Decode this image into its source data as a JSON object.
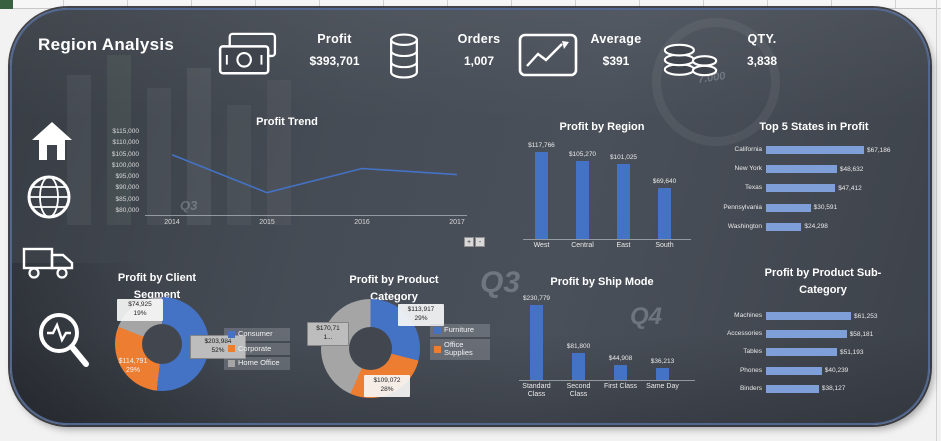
{
  "header": {
    "title": "Region Analysis"
  },
  "kpis": [
    {
      "label": "Profit",
      "value": "$393,701",
      "icon": "cash-icon"
    },
    {
      "label": "Orders",
      "value": "1,007",
      "icon": "database-icon"
    },
    {
      "label": "Average",
      "value": "$391",
      "icon": "line-chart-icon"
    },
    {
      "label": "QTY.",
      "value": "3,838",
      "icon": "coins-icon"
    }
  ],
  "trend_controls": {
    "zoom_in": "+",
    "zoom_out": "-"
  },
  "watermarks": {
    "q3_small": "Q3",
    "q3_big": "Q3",
    "q4": "Q4",
    "number": "7.000"
  },
  "colors": {
    "accent_blue": "#4472c4",
    "accent_light_blue": "#7f9fd8",
    "accent_orange": "#ed7d31",
    "accent_gray": "#a5a5a5",
    "card_bg": "#3f444c"
  },
  "chart_data": [
    {
      "type": "line",
      "title": "Profit Trend",
      "x": [
        "2014",
        "2015",
        "2016",
        "2017"
      ],
      "values": [
        105800,
        89000,
        99700,
        97000
      ],
      "ylim": [
        80000,
        115000
      ],
      "ytick_labels": [
        "$115,000",
        "$110,000",
        "$105,000",
        "$100,000",
        "$95,000",
        "$90,000",
        "$85,000",
        "$80,000"
      ],
      "line_color": "#4472c4",
      "legend": "off"
    },
    {
      "type": "bar",
      "title": "Profit by Region",
      "categories": [
        "West",
        "Central",
        "East",
        "South"
      ],
      "values": [
        117766,
        105270,
        101025,
        69640
      ],
      "value_labels": [
        "$117,766",
        "$105,270",
        "$101,025",
        "$69,640"
      ],
      "bar_color": "#4472c4"
    },
    {
      "type": "bar",
      "orientation": "horizontal",
      "title": "Top 5 States in Profit",
      "categories": [
        "California",
        "New York",
        "Texas",
        "Pennsylvania",
        "Washington"
      ],
      "values": [
        67186,
        48632,
        47412,
        30591,
        24298
      ],
      "value_labels": [
        "$67,186",
        "$48,632",
        "$47,412",
        "$30,591",
        "$24,298"
      ],
      "bar_color": "#7f9fd8"
    },
    {
      "type": "pie",
      "subtype": "donut",
      "title": "Profit by Client Segment",
      "title_lines": [
        "Profit by Client",
        "Segment"
      ],
      "slices": [
        {
          "name": "Consumer",
          "value": 203984,
          "label": "$203,984",
          "pct": "52%",
          "color": "#4472c4"
        },
        {
          "name": "Corporate",
          "value": 114791,
          "label": "$114,791",
          "pct": "29%",
          "color": "#ed7d31"
        },
        {
          "name": "Home Office",
          "value": 74925,
          "label": "$74,925",
          "pct": "19%",
          "color": "#a5a5a5"
        }
      ]
    },
    {
      "type": "pie",
      "subtype": "donut",
      "title": "Profit by Product Category",
      "title_lines": [
        "Profit by Product",
        "Category"
      ],
      "slices": [
        {
          "name": "Furniture",
          "value": 113917,
          "label": "$113,917",
          "pct": "29%",
          "color": "#4472c4"
        },
        {
          "name": "Office Supplies",
          "value": 109072,
          "label": "$109,072",
          "pct": "28%",
          "color": "#ed7d31"
        },
        {
          "name": "",
          "value": 170711,
          "label": "$170,71",
          "label_more": "1...",
          "pct": "",
          "color": "#a5a5a5"
        }
      ]
    },
    {
      "type": "bar",
      "title": "Profit by Ship Mode",
      "categories": [
        "Standard Class",
        "Second Class",
        "First Class",
        "Same Day"
      ],
      "values": [
        230779,
        81800,
        44908,
        36213
      ],
      "value_labels": [
        "$230,779",
        "$81,800",
        "$44,908",
        "$36,213"
      ],
      "bar_color": "#4472c4"
    },
    {
      "type": "bar",
      "orientation": "horizontal",
      "title": "Profit by  Product Sub-Category",
      "title_lines": [
        "Profit by  Product Sub-",
        "Category"
      ],
      "categories": [
        "Machines",
        "Accessories",
        "Tables",
        "Phones",
        "Binders"
      ],
      "values": [
        61253,
        58181,
        51193,
        40239,
        38127
      ],
      "value_labels": [
        "$61,253",
        "$58,181",
        "$51,193",
        "$40,239",
        "$38,127"
      ],
      "bar_color": "#7f9fd8"
    }
  ]
}
